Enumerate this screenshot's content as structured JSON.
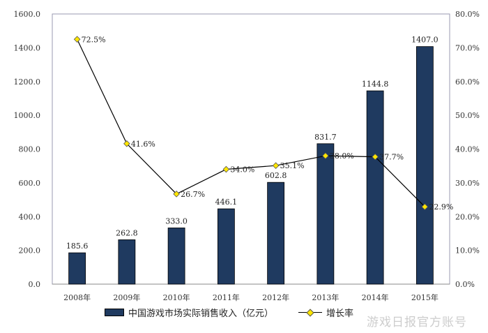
{
  "chart_data": {
    "type": "bar+line",
    "categories": [
      "2008年",
      "2009年",
      "2010年",
      "2011年",
      "2012年",
      "2013年",
      "2014年",
      "2015年"
    ],
    "series": [
      {
        "name": "中国游戏市场实际销售收入（亿元）",
        "type": "bar",
        "axis": "left",
        "values": [
          185.6,
          262.8,
          333.0,
          446.1,
          602.8,
          831.7,
          1144.8,
          1407.0
        ],
        "labels": [
          "185.6",
          "262.8",
          "333.0",
          "446.1",
          "602.8",
          "831.7",
          "1144.8",
          "1407.0"
        ],
        "color": "#1f3a60"
      },
      {
        "name": "增长率",
        "type": "line",
        "axis": "right",
        "values": [
          72.5,
          41.6,
          26.7,
          34.0,
          35.1,
          38.0,
          37.7,
          22.9
        ],
        "labels": [
          "72.5%",
          "41.6%",
          "26.7%",
          "34.0%",
          "35.1%",
          "38.0%",
          "37.7%",
          "22.9%"
        ],
        "color": "#000000",
        "marker_color": "#ffe600"
      }
    ],
    "y_left": {
      "range": [
        0,
        1600
      ],
      "ticks": [
        "0.0",
        "200.0",
        "400.0",
        "600.0",
        "800.0",
        "1000.0",
        "1200.0",
        "1400.0",
        "1600.0"
      ]
    },
    "y_right": {
      "range": [
        0,
        80
      ],
      "ticks": [
        "0.0%",
        "10.0%",
        "20.0%",
        "30.0%",
        "40.0%",
        "50.0%",
        "60.0%",
        "70.0%",
        "80.0%"
      ]
    },
    "grid": false,
    "legend": "bottom"
  },
  "watermark": "游戏日报官方账号"
}
